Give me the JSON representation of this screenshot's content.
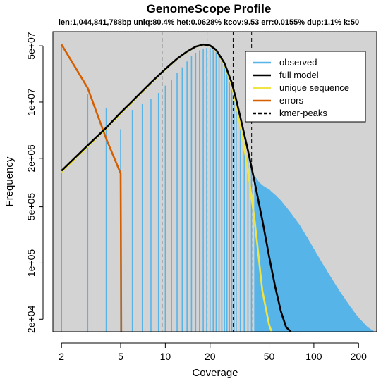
{
  "chart_data": {
    "type": "line",
    "title": "GenomeScope Profile",
    "subtitle": "len:1,044,841,788bp uniq:80.4%  het:0.0628% kcov:9.53  err:0.0155%  dup:1.1%  k:50",
    "xlabel": "Coverage",
    "ylabel": "Frequency",
    "x_scale": "log",
    "y_scale": "log",
    "xlim": [
      1.75,
      265
    ],
    "ylim": [
      14000.0,
      75000000.0
    ],
    "x_ticks": [
      2,
      5,
      10,
      20,
      50,
      100,
      200
    ],
    "x_tick_labels": [
      "2",
      "5",
      "10",
      "20",
      "50",
      "100",
      "200"
    ],
    "y_ticks": [
      20000,
      100000,
      500000,
      2000000,
      10000000,
      50000000
    ],
    "y_tick_labels": [
      "2e+04",
      "1e+05",
      "5e+05",
      "2e+06",
      "1e+07",
      "5e+07"
    ],
    "kmer_peaks": [
      9.5,
      19.1,
      28.6,
      38.1
    ],
    "background": "#d3d3d3",
    "legend": {
      "position": "top-right",
      "items": [
        {
          "label": "observed",
          "color": "#56b4e9",
          "style": "solid"
        },
        {
          "label": "full model",
          "color": "#000000",
          "style": "solid"
        },
        {
          "label": "unique sequence",
          "color": "#f0e442",
          "style": "solid"
        },
        {
          "label": "errors",
          "color": "#d55e00",
          "style": "solid"
        },
        {
          "label": "kmer-peaks",
          "color": "#000000",
          "style": "dashed"
        }
      ]
    },
    "series": [
      {
        "name": "observed",
        "type": "histogram",
        "color": "#56b4e9",
        "x": [
          2,
          3,
          4,
          5,
          6,
          7,
          8,
          9,
          10,
          11,
          12,
          13,
          14,
          15,
          16,
          17,
          18,
          19,
          20,
          21,
          22,
          23,
          24,
          25,
          26,
          27,
          28,
          29,
          30,
          32,
          34,
          36,
          38,
          40,
          43,
          46,
          50,
          55,
          60,
          70,
          80,
          90,
          100,
          120,
          150,
          180,
          200,
          230,
          250
        ],
        "values": [
          52000000,
          12500000,
          8500000,
          4600000,
          8000000,
          9500000,
          11000000,
          13000000,
          16000000,
          19000000,
          23000000,
          27000000,
          32000000,
          37000000,
          41000000,
          44000000,
          46000000,
          47000000,
          47000000,
          45000000,
          42000000,
          38000000,
          34000000,
          29000000,
          25000000,
          20000000,
          16000000,
          12000000,
          9000000,
          5000000,
          3000000,
          2000000,
          1500000,
          1200000,
          1000000,
          900000,
          820000,
          700000,
          600000,
          420000,
          300000,
          210000,
          150000,
          85000,
          44000,
          27000,
          21000,
          16000,
          14500
        ]
      },
      {
        "name": "full model",
        "color": "#000000",
        "x": [
          2,
          3,
          4,
          5,
          6,
          7,
          8,
          10,
          12,
          14,
          16,
          18,
          20,
          22,
          25,
          28,
          30,
          33,
          36,
          40,
          45,
          50,
          55,
          60,
          65,
          70
        ],
        "values": [
          1400000,
          2900000,
          4800000,
          7400000,
          10300000,
          13700000,
          17500000,
          25700000,
          34600000,
          42500000,
          48900000,
          52000000,
          50500000,
          44500000,
          30500000,
          17500000,
          10700000,
          5100000,
          2500000,
          1000000,
          340000,
          120000,
          50000,
          25000,
          16000,
          14000
        ]
      },
      {
        "name": "unique sequence",
        "color": "#f0e442",
        "x": [
          2,
          3,
          4,
          5,
          6,
          7,
          8,
          10,
          12,
          14,
          16,
          18,
          20,
          22,
          25,
          28,
          30,
          33,
          36,
          40,
          45,
          50,
          52
        ],
        "values": [
          1350000,
          2800000,
          4700000,
          7200000,
          10100000,
          13500000,
          17300000,
          25500000,
          34400000,
          42300000,
          48700000,
          51800000,
          50300000,
          44000000,
          29500000,
          16000000,
          9300000,
          3800000,
          1400000,
          330000,
          45000,
          17000,
          14000
        ]
      },
      {
        "name": "errors",
        "color": "#d55e00",
        "x": [
          2,
          3,
          4,
          5,
          5.05
        ],
        "values": [
          52000000,
          15000000,
          3500000,
          1300000,
          14000
        ]
      }
    ]
  }
}
